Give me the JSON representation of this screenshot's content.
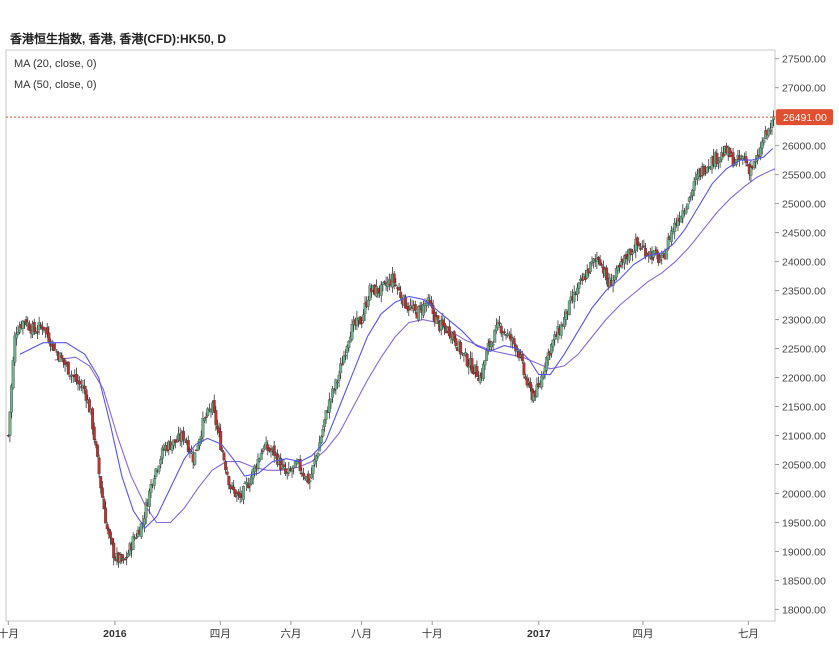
{
  "chart_data": {
    "type": "candlestick",
    "title": "香港恒生指数, 香港, 香港(CFD):HK50, D",
    "legend": [
      {
        "name": "MA (20, close, 0)",
        "color": "#5555ee"
      },
      {
        "name": "MA (50, close, 0)",
        "color": "#8866dd"
      }
    ],
    "y_axis": {
      "ylim": [
        17800,
        27650
      ],
      "ticks": [
        "27500.00",
        "27000.00",
        "26500.00",
        "26000.00",
        "25500.00",
        "25000.00",
        "24500.00",
        "24000.00",
        "23500.00",
        "23000.00",
        "22500.00",
        "22000.00",
        "21500.00",
        "21000.00",
        "20500.00",
        "20000.00",
        "19500.00",
        "19000.00",
        "18500.00",
        "18000.00"
      ],
      "tick_values": [
        27500,
        27000,
        26500,
        26000,
        25500,
        25000,
        24500,
        24000,
        23500,
        23000,
        22500,
        22000,
        21500,
        21000,
        20500,
        20000,
        19500,
        19000,
        18500,
        18000
      ]
    },
    "x_axis": {
      "labels": [
        {
          "text": "十月",
          "day": 0,
          "bold": false
        },
        {
          "text": "2016",
          "day": 92,
          "bold": true
        },
        {
          "text": "四月",
          "day": 183,
          "bold": false
        },
        {
          "text": "六月",
          "day": 244,
          "bold": false
        },
        {
          "text": "八月",
          "day": 305,
          "bold": false
        },
        {
          "text": "十月",
          "day": 366,
          "bold": false
        },
        {
          "text": "2017",
          "day": 458,
          "bold": true
        },
        {
          "text": "四月",
          "day": 548,
          "bold": false
        },
        {
          "text": "七月",
          "day": 639,
          "bold": false
        }
      ],
      "range_days": [
        -2,
        662
      ]
    },
    "last_price": {
      "value": 26491,
      "label": "26491.00",
      "color": "#e05030"
    },
    "up_color": "#6fb08a",
    "down_color": "#b83232",
    "anchors_close": [
      [
        0,
        21000
      ],
      [
        6,
        22800
      ],
      [
        14,
        23000
      ],
      [
        22,
        22800
      ],
      [
        30,
        22900
      ],
      [
        40,
        22500
      ],
      [
        50,
        22200
      ],
      [
        60,
        21900
      ],
      [
        66,
        21800
      ],
      [
        72,
        21300
      ],
      [
        80,
        20100
      ],
      [
        86,
        19300
      ],
      [
        92,
        18900
      ],
      [
        100,
        18800
      ],
      [
        108,
        19200
      ],
      [
        116,
        19500
      ],
      [
        125,
        20300
      ],
      [
        135,
        20800
      ],
      [
        145,
        20900
      ],
      [
        152,
        21000
      ],
      [
        160,
        20600
      ],
      [
        168,
        21200
      ],
      [
        176,
        21500
      ],
      [
        184,
        20800
      ],
      [
        192,
        20100
      ],
      [
        200,
        19900
      ],
      [
        210,
        20300
      ],
      [
        220,
        20800
      ],
      [
        230,
        20700
      ],
      [
        240,
        20300
      ],
      [
        250,
        20500
      ],
      [
        260,
        20200
      ],
      [
        268,
        20800
      ],
      [
        276,
        21500
      ],
      [
        285,
        22000
      ],
      [
        295,
        22800
      ],
      [
        305,
        23000
      ],
      [
        312,
        23500
      ],
      [
        322,
        23500
      ],
      [
        332,
        23700
      ],
      [
        342,
        23300
      ],
      [
        352,
        23100
      ],
      [
        362,
        23300
      ],
      [
        372,
        22900
      ],
      [
        382,
        22800
      ],
      [
        392,
        22400
      ],
      [
        400,
        22200
      ],
      [
        408,
        22000
      ],
      [
        414,
        22500
      ],
      [
        424,
        22900
      ],
      [
        432,
        22700
      ],
      [
        440,
        22500
      ],
      [
        446,
        22000
      ],
      [
        452,
        21700
      ],
      [
        458,
        21800
      ],
      [
        464,
        22300
      ],
      [
        470,
        22600
      ],
      [
        478,
        22900
      ],
      [
        486,
        23300
      ],
      [
        494,
        23600
      ],
      [
        502,
        23900
      ],
      [
        510,
        24100
      ],
      [
        518,
        23600
      ],
      [
        526,
        23800
      ],
      [
        534,
        24100
      ],
      [
        542,
        24300
      ],
      [
        550,
        24200
      ],
      [
        558,
        24100
      ],
      [
        565,
        24000
      ],
      [
        572,
        24500
      ],
      [
        580,
        24800
      ],
      [
        588,
        25100
      ],
      [
        596,
        25500
      ],
      [
        604,
        25700
      ],
      [
        612,
        25800
      ],
      [
        620,
        25900
      ],
      [
        628,
        25700
      ],
      [
        635,
        25800
      ],
      [
        640,
        25600
      ],
      [
        646,
        25700
      ],
      [
        652,
        26100
      ],
      [
        658,
        26300
      ],
      [
        662,
        26491
      ]
    ],
    "ma20": [
      [
        10,
        22400
      ],
      [
        30,
        22600
      ],
      [
        50,
        22600
      ],
      [
        66,
        22400
      ],
      [
        78,
        22000
      ],
      [
        88,
        21200
      ],
      [
        98,
        20300
      ],
      [
        108,
        19700
      ],
      [
        118,
        19400
      ],
      [
        128,
        19600
      ],
      [
        140,
        20100
      ],
      [
        152,
        20600
      ],
      [
        162,
        20850
      ],
      [
        172,
        20950
      ],
      [
        184,
        20850
      ],
      [
        194,
        20600
      ],
      [
        204,
        20300
      ],
      [
        216,
        20350
      ],
      [
        228,
        20550
      ],
      [
        240,
        20600
      ],
      [
        252,
        20550
      ],
      [
        262,
        20650
      ],
      [
        274,
        20900
      ],
      [
        286,
        21500
      ],
      [
        298,
        22100
      ],
      [
        310,
        22700
      ],
      [
        322,
        23100
      ],
      [
        334,
        23300
      ],
      [
        346,
        23400
      ],
      [
        358,
        23350
      ],
      [
        368,
        23200
      ],
      [
        380,
        23000
      ],
      [
        392,
        22800
      ],
      [
        404,
        22550
      ],
      [
        416,
        22450
      ],
      [
        428,
        22550
      ],
      [
        440,
        22500
      ],
      [
        450,
        22300
      ],
      [
        458,
        22050
      ],
      [
        468,
        22050
      ],
      [
        480,
        22400
      ],
      [
        492,
        22800
      ],
      [
        504,
        23200
      ],
      [
        516,
        23500
      ],
      [
        528,
        23700
      ],
      [
        540,
        23950
      ],
      [
        552,
        24100
      ],
      [
        564,
        24150
      ],
      [
        574,
        24300
      ],
      [
        584,
        24550
      ],
      [
        596,
        24950
      ],
      [
        608,
        25350
      ],
      [
        620,
        25600
      ],
      [
        632,
        25750
      ],
      [
        642,
        25750
      ],
      [
        652,
        25800
      ],
      [
        660,
        25950
      ]
    ],
    "ma50": [
      [
        40,
        22300
      ],
      [
        58,
        22350
      ],
      [
        70,
        22200
      ],
      [
        82,
        21800
      ],
      [
        94,
        21000
      ],
      [
        106,
        20300
      ],
      [
        118,
        19800
      ],
      [
        128,
        19500
      ],
      [
        140,
        19500
      ],
      [
        152,
        19750
      ],
      [
        164,
        20100
      ],
      [
        176,
        20400
      ],
      [
        188,
        20550
      ],
      [
        200,
        20550
      ],
      [
        212,
        20450
      ],
      [
        224,
        20400
      ],
      [
        236,
        20400
      ],
      [
        250,
        20450
      ],
      [
        262,
        20550
      ],
      [
        274,
        20750
      ],
      [
        286,
        21050
      ],
      [
        298,
        21500
      ],
      [
        310,
        21950
      ],
      [
        322,
        22350
      ],
      [
        334,
        22700
      ],
      [
        346,
        22950
      ],
      [
        358,
        23000
      ],
      [
        370,
        22950
      ],
      [
        382,
        22800
      ],
      [
        394,
        22650
      ],
      [
        406,
        22550
      ],
      [
        420,
        22450
      ],
      [
        432,
        22400
      ],
      [
        444,
        22350
      ],
      [
        456,
        22250
      ],
      [
        468,
        22150
      ],
      [
        480,
        22200
      ],
      [
        492,
        22400
      ],
      [
        504,
        22700
      ],
      [
        516,
        23000
      ],
      [
        528,
        23250
      ],
      [
        540,
        23450
      ],
      [
        552,
        23650
      ],
      [
        564,
        23800
      ],
      [
        576,
        24000
      ],
      [
        588,
        24250
      ],
      [
        600,
        24550
      ],
      [
        612,
        24850
      ],
      [
        624,
        25100
      ],
      [
        636,
        25300
      ],
      [
        646,
        25450
      ],
      [
        656,
        25550
      ],
      [
        662,
        25600
      ]
    ]
  }
}
